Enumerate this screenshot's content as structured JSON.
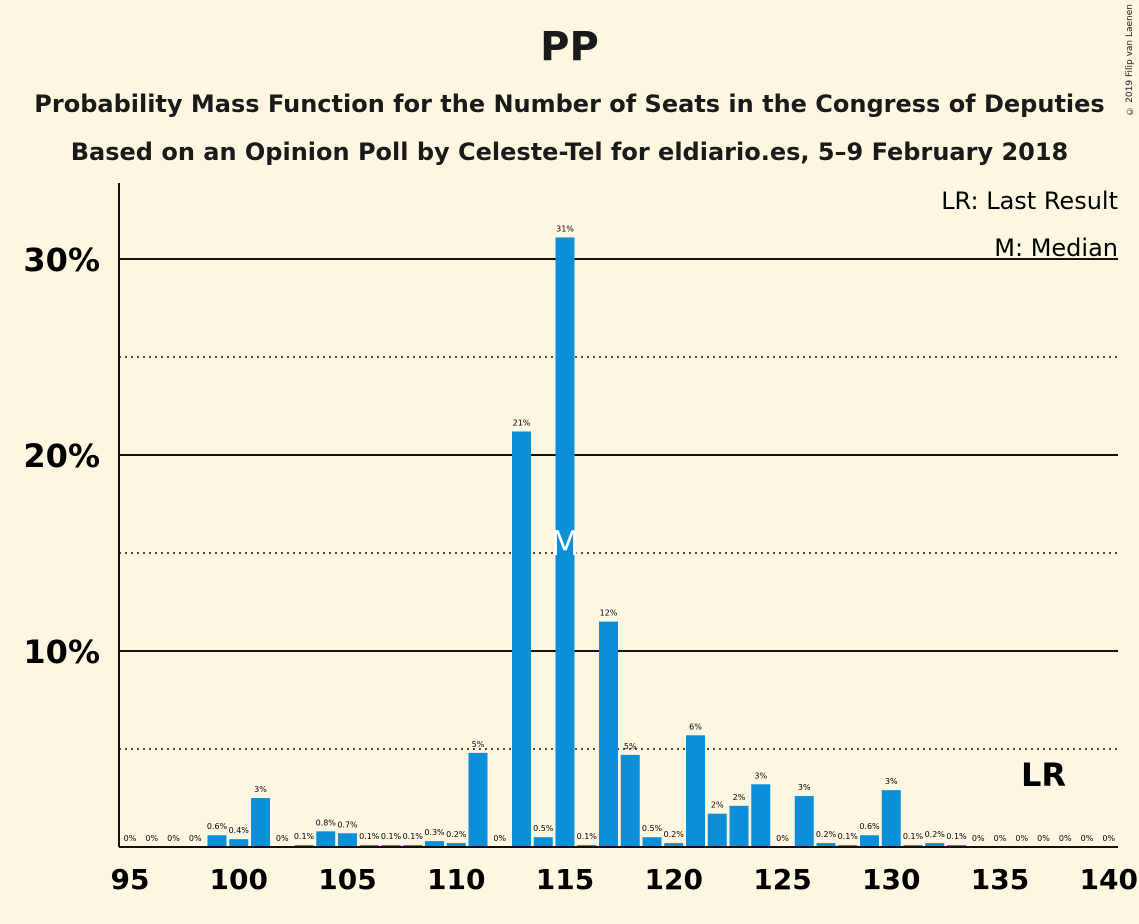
{
  "chart_data": {
    "type": "bar",
    "title": "PP",
    "subtitle_1": "Probability Mass Function for the Number of Seats in the Congress of Deputies",
    "subtitle_2": "Based on an Opinion Poll by Celeste-Tel for eldiario.es, 5–9 February 2018",
    "copyright": "© 2019 Filip van Laenen",
    "x": [
      95,
      96,
      97,
      98,
      99,
      100,
      101,
      102,
      103,
      104,
      105,
      106,
      107,
      108,
      109,
      110,
      111,
      112,
      113,
      114,
      115,
      116,
      117,
      118,
      119,
      120,
      121,
      122,
      123,
      124,
      125,
      126,
      127,
      128,
      129,
      130,
      131,
      132,
      133,
      134,
      135,
      136,
      137,
      138,
      139,
      140
    ],
    "values": [
      0,
      0,
      0,
      0,
      0.6,
      0.4,
      2.5,
      0,
      0.1,
      0.8,
      0.7,
      0.1,
      0.1,
      0.1,
      0.3,
      0.2,
      4.8,
      0,
      21.2,
      0.5,
      31.1,
      0.1,
      11.5,
      4.7,
      0.5,
      0.2,
      5.7,
      1.7,
      2.1,
      3.2,
      0,
      2.6,
      0.2,
      0.1,
      0.6,
      2.9,
      0.1,
      0.2,
      0.1,
      0,
      0,
      0,
      0,
      0,
      0,
      0
    ],
    "labels": [
      "0%",
      "0%",
      "0%",
      "0%",
      "0.6%",
      "0.4%",
      "3%",
      "0%",
      "0.1%",
      "0.8%",
      "0.7%",
      "0.1%",
      "0.1%",
      "0.1%",
      "0.3%",
      "0.2%",
      "5%",
      "0%",
      "21%",
      "0.5%",
      "31%",
      "0.1%",
      "12%",
      "5%",
      "0.5%",
      "0.2%",
      "6%",
      "2%",
      "2%",
      "3%",
      "0%",
      "3%",
      "0.2%",
      "0.1%",
      "0.6%",
      "3%",
      "0.1%",
      "0.2%",
      "0.1%",
      "0%",
      "0%",
      "0%",
      "0%",
      "0%",
      "0%",
      "0%"
    ],
    "x_tick_labels": [
      "95",
      "100",
      "105",
      "110",
      "115",
      "120",
      "125",
      "130",
      "135",
      "140"
    ],
    "y_tick_labels": [
      "10%",
      "20%",
      "30%"
    ],
    "ylim": [
      0,
      34
    ],
    "xlim": [
      95,
      140
    ],
    "median": 115,
    "median_marker": "M",
    "last_result": 137,
    "last_result_marker": "LR",
    "legend": [
      "LR: Last Result",
      "M: Median"
    ],
    "legend_position": "top-right",
    "bar_color": "#0a8fd8",
    "background_color": "#fdf7e2"
  }
}
